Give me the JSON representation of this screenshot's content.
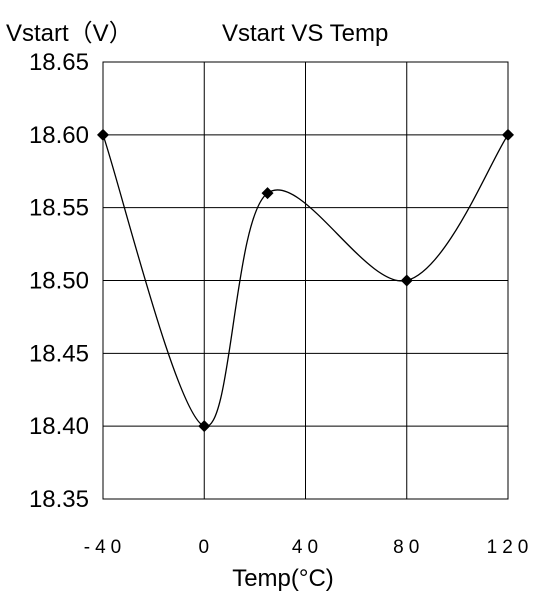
{
  "chart_data": {
    "type": "line",
    "title": "Vstart VS Temp",
    "ylabel": "Vstart（V）",
    "xlabel": "Temp(°C)",
    "x_ticks": [
      "-40",
      "0",
      "40",
      "80",
      "120"
    ],
    "y_ticks": [
      "18.65",
      "18.60",
      "18.55",
      "18.50",
      "18.45",
      "18.40",
      "18.35"
    ],
    "xlim": [
      -40,
      120
    ],
    "ylim": [
      18.35,
      18.65
    ],
    "grid": true,
    "marker": "diamond",
    "series": [
      {
        "x": [
          -40,
          0,
          25,
          80,
          120
        ],
        "values": [
          18.6,
          18.4,
          18.56,
          18.5,
          18.6
        ]
      }
    ],
    "colors": {
      "line": "#000000",
      "grid": "#000000",
      "background": "#ffffff"
    }
  }
}
